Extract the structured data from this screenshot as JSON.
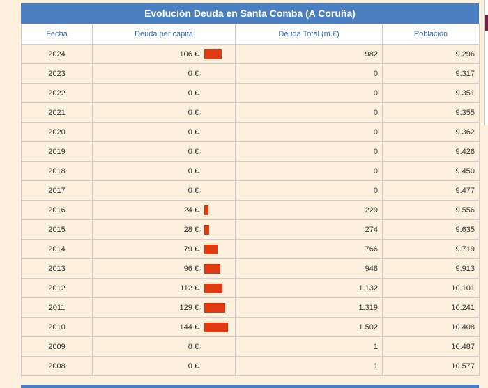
{
  "table": {
    "title": "Evolución Deuda en Santa Comba (A Coruña)",
    "headers": [
      "Fecha",
      "Deuda per capita",
      "Deuda Total (m.€)",
      "Población"
    ],
    "rows": [
      {
        "year": "2024",
        "per_capita": "106 €",
        "per_capita_value": 106,
        "total": "982",
        "population": "9.296"
      },
      {
        "year": "2023",
        "per_capita": "0 €",
        "per_capita_value": 0,
        "total": "0",
        "population": "9.317"
      },
      {
        "year": "2022",
        "per_capita": "0 €",
        "per_capita_value": 0,
        "total": "0",
        "population": "9.351"
      },
      {
        "year": "2021",
        "per_capita": "0 €",
        "per_capita_value": 0,
        "total": "0",
        "population": "9.355"
      },
      {
        "year": "2020",
        "per_capita": "0 €",
        "per_capita_value": 0,
        "total": "0",
        "population": "9.362"
      },
      {
        "year": "2019",
        "per_capita": "0 €",
        "per_capita_value": 0,
        "total": "0",
        "population": "9.426"
      },
      {
        "year": "2018",
        "per_capita": "0 €",
        "per_capita_value": 0,
        "total": "0",
        "population": "9.450"
      },
      {
        "year": "2017",
        "per_capita": "0 €",
        "per_capita_value": 0,
        "total": "0",
        "population": "9.477"
      },
      {
        "year": "2016",
        "per_capita": "24 €",
        "per_capita_value": 24,
        "total": "229",
        "population": "9.556"
      },
      {
        "year": "2015",
        "per_capita": "28 €",
        "per_capita_value": 28,
        "total": "274",
        "population": "9.635"
      },
      {
        "year": "2014",
        "per_capita": "79 €",
        "per_capita_value": 79,
        "total": "766",
        "population": "9.719"
      },
      {
        "year": "2013",
        "per_capita": "96 €",
        "per_capita_value": 96,
        "total": "948",
        "population": "9.913"
      },
      {
        "year": "2012",
        "per_capita": "112 €",
        "per_capita_value": 112,
        "total": "1.132",
        "population": "10.101"
      },
      {
        "year": "2011",
        "per_capita": "129 €",
        "per_capita_value": 129,
        "total": "1.319",
        "population": "10.241"
      },
      {
        "year": "2010",
        "per_capita": "144 €",
        "per_capita_value": 144,
        "total": "1.502",
        "population": "10.408"
      },
      {
        "year": "2009",
        "per_capita": "0 €",
        "per_capita_value": 0,
        "total": "1",
        "population": "10.487"
      },
      {
        "year": "2008",
        "per_capita": "0 €",
        "per_capita_value": 0,
        "total": "1",
        "population": "10.577"
      }
    ]
  },
  "colors": {
    "header_bg": "#4a7fc1",
    "bar": "#e03a12",
    "page_bg": "#fdf0dc"
  }
}
